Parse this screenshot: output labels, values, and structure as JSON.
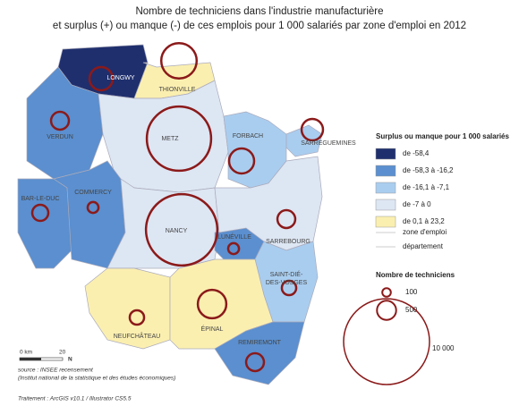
{
  "title": [
    "Nombre de techniciens dans l'industrie manufacturière",
    "et surplus (+) ou manque (-) de ces emplois pour 1 000 salariés par zone d'emploi en 2012"
  ],
  "legend": {
    "title": "Surplus ou manque pour 1 000 salariés",
    "classes": [
      {
        "label": "de -58,4",
        "color": "#1f2f6e"
      },
      {
        "label": "de -58,3 à -16,2",
        "color": "#5b8fcf"
      },
      {
        "label": "de -16,1 à -7,1",
        "color": "#a9cdef"
      },
      {
        "label": "de -7 à 0",
        "color": "#dde6f3"
      },
      {
        "label": "de 0,1 à 23,2",
        "color": "#fbefb0"
      }
    ],
    "zone_line": "zone d'emploi",
    "dept_line": "département"
  },
  "size_legend": {
    "title": "Nombre de techniciens",
    "circle_color": "#8b1a1a",
    "sizes": [
      100,
      500,
      {
        "value": 10000,
        "label": "10 000"
      }
    ]
  },
  "zones": [
    {
      "label": [
        "LONGWY"
      ],
      "class": 0,
      "techniciens": 730
    },
    {
      "label": [
        "THIONVILLE"
      ],
      "class": 4,
      "techniciens": 1700
    },
    {
      "label": [
        "VERDUN"
      ],
      "class": 1,
      "techniciens": 430
    },
    {
      "label": [
        "METZ"
      ],
      "class": 3,
      "techniciens": 5600
    },
    {
      "label": [
        "FORBACH"
      ],
      "class": 2,
      "techniciens": 850
    },
    {
      "label": [
        "SARREGUEMINES"
      ],
      "class": 2,
      "techniciens": 620
    },
    {
      "label": [
        "BAR-LE-DUC"
      ],
      "class": 1,
      "techniciens": 350
    },
    {
      "label": [
        "COMMERCY"
      ],
      "class": 1,
      "techniciens": 160
    },
    {
      "label": [
        "NANCY"
      ],
      "class": 3,
      "techniciens": 6900
    },
    {
      "label": [
        "LUNÉVILLE"
      ],
      "class": 1,
      "techniciens": 160
    },
    {
      "label": [
        "SARREBOURG"
      ],
      "class": 3,
      "techniciens": 430
    },
    {
      "label": [
        "SAINT-DIÉ-",
        "DES-VOSGES"
      ],
      "class": 2,
      "techniciens": 280
    },
    {
      "label": [
        "NEUFCHÂTEAU"
      ],
      "class": 4,
      "techniciens": 280
    },
    {
      "label": [
        "ÉPINAL"
      ],
      "class": 4,
      "techniciens": 1100
    },
    {
      "label": [
        "REMIREMONT"
      ],
      "class": 1,
      "techniciens": 430
    }
  ],
  "scale": {
    "start": "0 km",
    "end": "20",
    "north": "N"
  },
  "source": [
    "source : INSEE recensement",
    "(Institut national de la statistique et des études économiques)"
  ],
  "credits": "Traitement : ArcGIS v10.1 / Illustrator CS5.5"
}
